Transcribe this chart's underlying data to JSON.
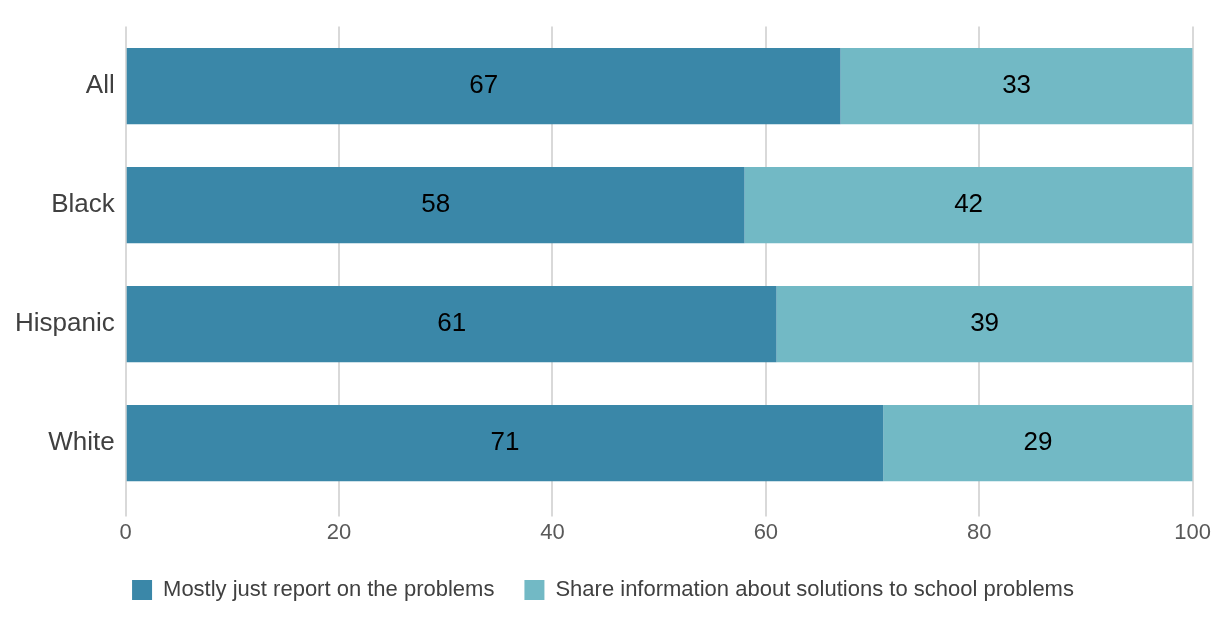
{
  "chart_data": {
    "type": "bar",
    "orientation": "horizontal",
    "stacked": true,
    "categories": [
      "All",
      "Black",
      "Hispanic",
      "White"
    ],
    "series": [
      {
        "name": "Mostly just report on the problems",
        "color": "#3a87a8",
        "values": [
          67,
          58,
          61,
          71
        ]
      },
      {
        "name": "Share information about solutions to school problems",
        "color": "#72b9c5",
        "values": [
          33,
          42,
          39,
          29
        ]
      }
    ],
    "xlim": [
      0,
      100
    ],
    "xticks": [
      0,
      20,
      40,
      60,
      80,
      100
    ],
    "grid": "x",
    "legend": "bottom",
    "data_labels": true
  }
}
